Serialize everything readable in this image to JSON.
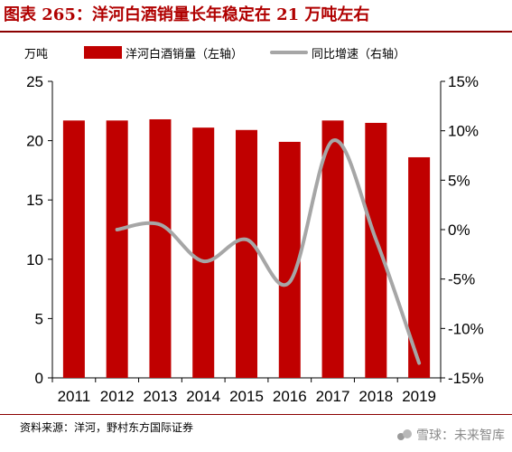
{
  "title": "图表 265：洋河白酒销量长年稳定在 21 万吨左右",
  "left_axis_unit": "万吨",
  "legend": {
    "bar_label": "洋河白酒销量（左轴）",
    "line_label": "同比增速（右轴）"
  },
  "source": "资料来源：洋河，野村东方国际证券",
  "watermark": "雪球：未来智库",
  "colors": {
    "bar": "#c00000",
    "line": "#a6a6a6",
    "title": "#b00000"
  },
  "chart_data": {
    "type": "bar",
    "categories": [
      "2011",
      "2012",
      "2013",
      "2014",
      "2015",
      "2016",
      "2017",
      "2018",
      "2019"
    ],
    "series": [
      {
        "name": "洋河白酒销量（左轴）",
        "type": "bar",
        "axis": "left",
        "values": [
          21.7,
          21.7,
          21.8,
          21.1,
          20.9,
          19.9,
          21.7,
          21.5,
          18.6
        ]
      },
      {
        "name": "同比增速（右轴）",
        "type": "line",
        "axis": "right",
        "x": [
          "2012",
          "2013",
          "2014",
          "2015",
          "2016",
          "2017",
          "2018",
          "2019"
        ],
        "values": [
          0.0,
          0.5,
          -3.2,
          -1.0,
          -5.3,
          9.0,
          -1.0,
          -13.5
        ]
      }
    ],
    "left_axis": {
      "ylim": [
        0,
        25
      ],
      "ticks": [
        "0",
        "5",
        "10",
        "15",
        "20",
        "25"
      ]
    },
    "right_axis": {
      "ylim": [
        -15,
        15
      ],
      "ticks": [
        "-15%",
        "-10%",
        "-5%",
        "0%",
        "5%",
        "10%",
        "15%"
      ]
    },
    "grid": false,
    "legend_position": "top"
  }
}
